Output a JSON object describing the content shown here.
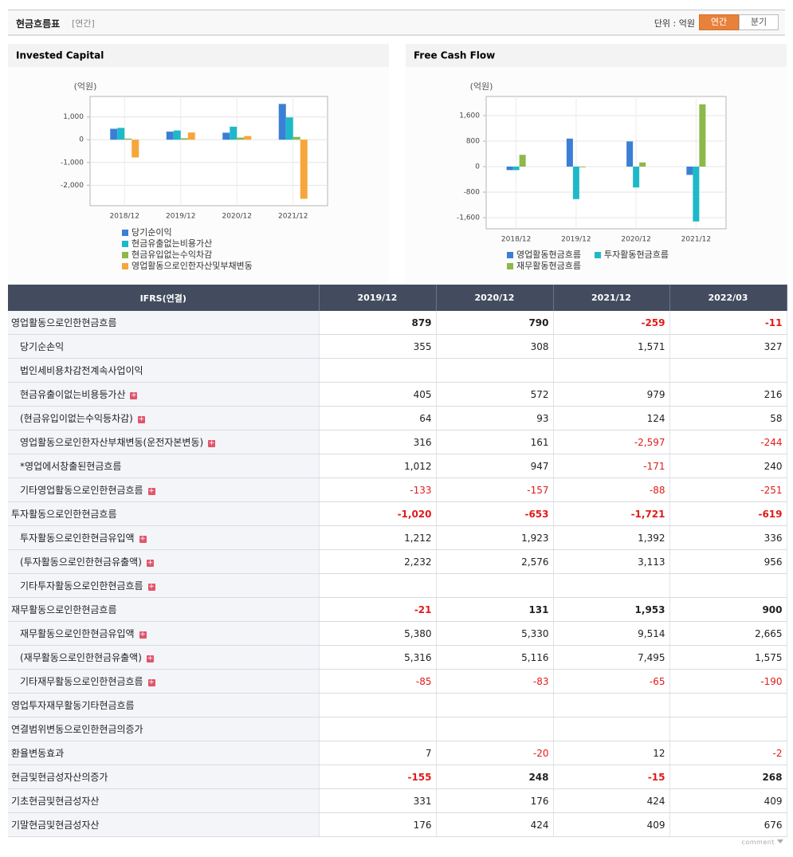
{
  "header": {
    "title": "현금흐름표",
    "period": "[연간]",
    "unit": "단위 : 억원",
    "tabs": [
      "연간",
      "분기"
    ]
  },
  "chart_data": [
    {
      "type": "bar",
      "title": "Invested Capital",
      "y_label": "(억원)",
      "categories": [
        "2018/12",
        "2019/12",
        "2020/12",
        "2021/12"
      ],
      "series": [
        {
          "name": "당기순이익",
          "color": "#3a7fd5",
          "values": [
            480,
            355,
            308,
            1571
          ]
        },
        {
          "name": "현금유출없는비용가산",
          "color": "#1eb9c9",
          "values": [
            520,
            405,
            572,
            979
          ]
        },
        {
          "name": "현금유입없는수익차감",
          "color": "#8db84a",
          "values": [
            50,
            64,
            93,
            124
          ]
        },
        {
          "name": "영업활동으로인한자산및부채변동",
          "color": "#f6a63c",
          "values": [
            -780,
            316,
            161,
            -2597
          ]
        }
      ],
      "ylim": [
        -2900,
        1900
      ],
      "yticks": [
        {
          "value": 1000,
          "label": "1,000"
        },
        0,
        {
          "value": -1000,
          "label": "-1,000"
        },
        {
          "value": -2000,
          "label": "-2,000"
        }
      ],
      "grid": true
    },
    {
      "type": "bar",
      "title": "Free Cash Flow",
      "y_label": "(억원)",
      "categories": [
        "2018/12",
        "2019/12",
        "2020/12",
        "2021/12"
      ],
      "series": [
        {
          "name": "영업활동현금흐름",
          "color": "#3a7fd5",
          "values": [
            -110,
            879,
            790,
            -259
          ]
        },
        {
          "name": "투자활동현금흐름",
          "color": "#1eb9c9",
          "values": [
            -110,
            -1020,
            -653,
            -1721
          ]
        },
        {
          "name": "재무활동현금흐름",
          "color": "#8db84a",
          "values": [
            370,
            -21,
            131,
            1953
          ]
        }
      ],
      "ylim": [
        -1950,
        2200
      ],
      "yticks": [
        {
          "value": 1600,
          "label": "1,600"
        },
        800,
        0,
        -800,
        {
          "value": -1600,
          "label": "-1,600"
        }
      ],
      "grid": true
    }
  ],
  "table": {
    "columns": [
      "IFRS(연결)",
      "2019/12",
      "2020/12",
      "2021/12",
      "2022/03"
    ],
    "rows": [
      {
        "label": "영업활동으로인한현금흐름",
        "values": [
          "879",
          "790",
          "-259",
          "-11"
        ],
        "bold": true,
        "rows": [
          {
            "label": "당기순손익",
            "values": [
              "355",
              "308",
              "1,571",
              "327"
            ]
          },
          {
            "label": "법인세비용차감전계속사업이익",
            "values": [
              null,
              null,
              null,
              null
            ]
          },
          {
            "label": "현금유출이없는비용등가산",
            "values": [
              "405",
              "572",
              "979",
              "216"
            ],
            "expandable": true
          },
          {
            "label": "(현금유입이없는수익등차감)",
            "values": [
              "64",
              "93",
              "124",
              "58"
            ],
            "expandable": true
          },
          {
            "label": "영업활동으로인한자산부채변동(운전자본변동)",
            "values": [
              "316",
              "161",
              "-2,597",
              "-244"
            ],
            "expandable": true
          },
          {
            "label": "*영업에서창출된현금흐름",
            "values": [
              "1,012",
              "947",
              "-171",
              "240"
            ]
          },
          {
            "label": "기타영업활동으로인한현금흐름",
            "values": [
              "-133",
              "-157",
              "-88",
              "-251"
            ],
            "expandable": true
          }
        ]
      },
      {
        "label": "투자활동으로인한현금흐름",
        "values": [
          "-1,020",
          "-653",
          "-1,721",
          "-619"
        ],
        "bold": true,
        "rows": [
          {
            "label": "투자활동으로인한현금유입액",
            "values": [
              "1,212",
              "1,923",
              "1,392",
              "336"
            ],
            "expandable": true
          },
          {
            "label": "(투자활동으로인한현금유출액)",
            "values": [
              "2,232",
              "2,576",
              "3,113",
              "956"
            ],
            "expandable": true
          },
          {
            "label": "기타투자활동으로인한현금흐름",
            "values": [
              null,
              null,
              null,
              null
            ],
            "expandable": true
          }
        ]
      },
      {
        "label": "재무활동으로인한현금흐름",
        "values": [
          "-21",
          "131",
          "1,953",
          "900"
        ],
        "bold": true,
        "rows": [
          {
            "label": "재무활동으로인한현금유입액",
            "values": [
              "5,380",
              "5,330",
              "9,514",
              "2,665"
            ],
            "expandable": true
          },
          {
            "label": "(재무활동으로인한현금유출액)",
            "values": [
              "5,316",
              "5,116",
              "7,495",
              "1,575"
            ],
            "expandable": true
          },
          {
            "label": "기타재무활동으로인한현금흐름",
            "values": [
              "-85",
              "-83",
              "-65",
              "-190"
            ],
            "expandable": true
          }
        ]
      },
      {
        "label": "영업투자재무활동기타현금흐름",
        "values": [
          null,
          null,
          null,
          null
        ]
      },
      {
        "label": "연결범위변동으로인한현금의증가",
        "values": [
          null,
          null,
          null,
          null
        ]
      },
      {
        "label": "환율변동효과",
        "values": [
          "7",
          "-20",
          "12",
          "-2"
        ]
      },
      {
        "label": "현금및현금성자산의증가",
        "values": [
          "-155",
          "248",
          "-15",
          "268"
        ],
        "bold": true
      },
      {
        "label": "기초현금및현금성자산",
        "values": [
          "331",
          "176",
          "424",
          "409"
        ]
      },
      {
        "label": "기말현금및현금성자산",
        "values": [
          "176",
          "424",
          "409",
          "676"
        ]
      }
    ]
  },
  "footer": {
    "comment": "comment"
  }
}
